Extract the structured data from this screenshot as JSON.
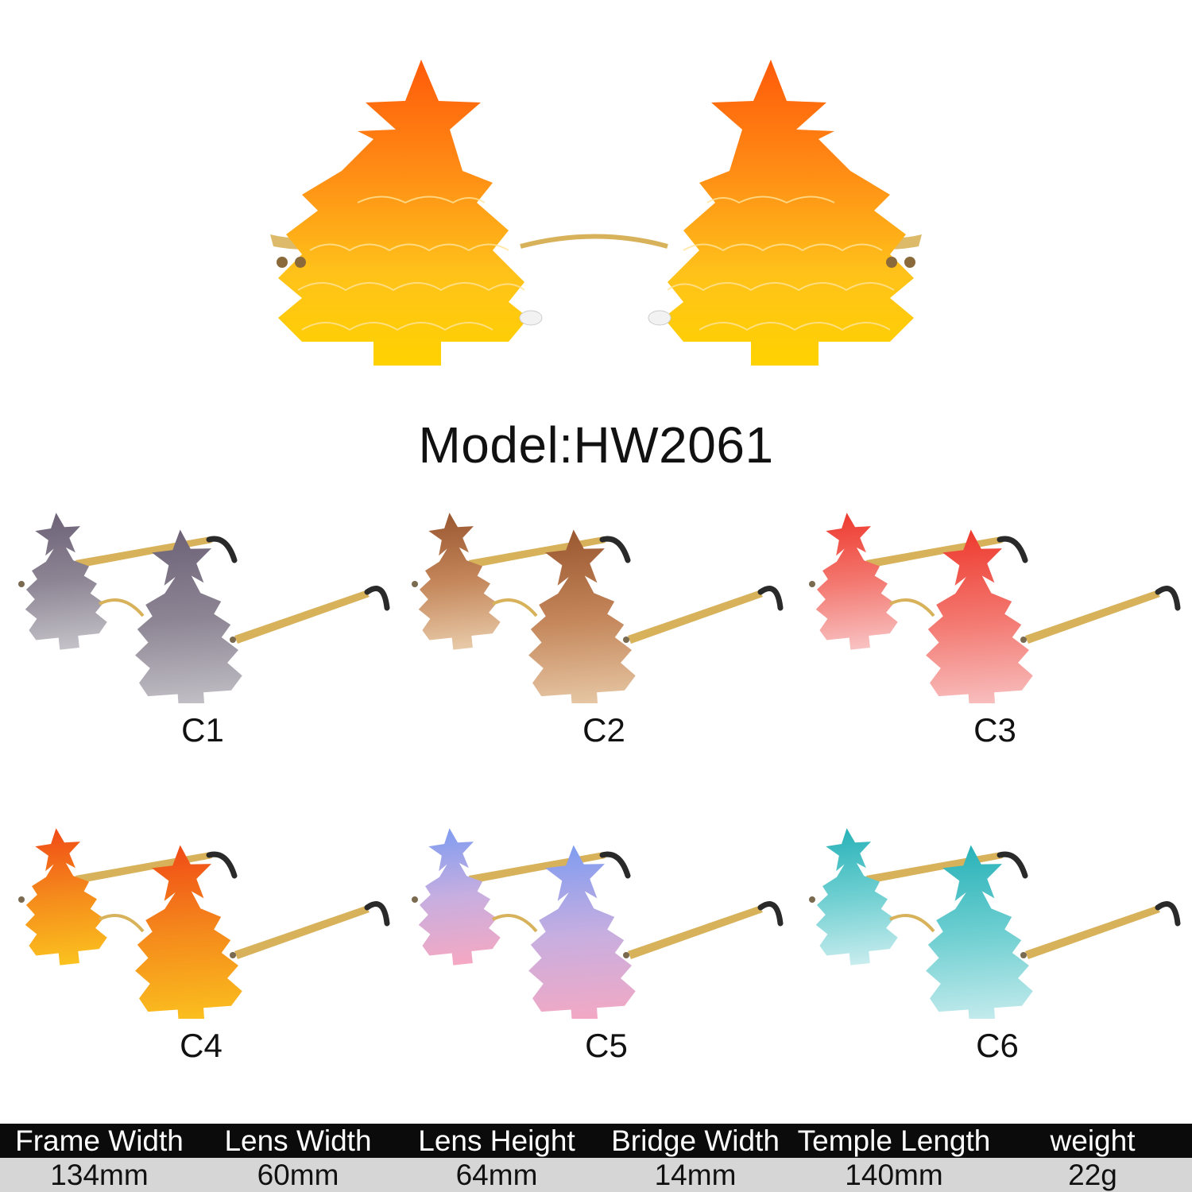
{
  "model_title": "Model:HW2061",
  "hero": {
    "lens_colors": [
      "#ff5a0a",
      "#ff8a14",
      "#ffc21a",
      "#ffd200"
    ]
  },
  "variants": [
    {
      "label": "C1",
      "lens_colors": [
        "#6d6277",
        "#8d8594",
        "#c4c2c8"
      ]
    },
    {
      "label": "C2",
      "lens_colors": [
        "#9a5730",
        "#c4865a",
        "#e8caa8"
      ]
    },
    {
      "label": "C3",
      "lens_colors": [
        "#ee3a2e",
        "#f3776f",
        "#f8c2c2"
      ]
    },
    {
      "label": "C4",
      "lens_colors": [
        "#f04a16",
        "#f58b1c",
        "#fbc21e"
      ]
    },
    {
      "label": "C5",
      "lens_colors": [
        "#7f9cf0",
        "#c7aee0",
        "#f5a8c2"
      ]
    },
    {
      "label": "C6",
      "lens_colors": [
        "#28b2b8",
        "#6fcfd1",
        "#c8ecee"
      ]
    }
  ],
  "specs": {
    "headers": [
      "Frame Width",
      "Lens Width",
      "Lens Height",
      "Bridge Width",
      "Temple Length",
      "weight"
    ],
    "values": [
      "134mm",
      "60mm",
      "64mm",
      "14mm",
      "140mm",
      "22g"
    ]
  },
  "colors": {
    "frame_gold": "#d8b25a",
    "temple_tip": "#2a2a2a",
    "background": "#ffffff"
  }
}
